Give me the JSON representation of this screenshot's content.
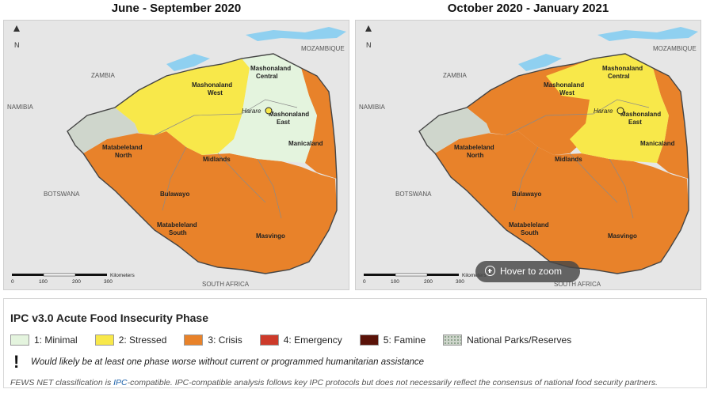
{
  "maps": [
    {
      "title": "June - September 2020",
      "labels": {
        "zambia": "ZAMBIA",
        "mozambique": "MOZAMBIQUE",
        "namibia": "NAMIBIA",
        "botswana": "BOTSWANA",
        "south_africa": "SOUTH AFRICA",
        "mashonaland_central_1": "Mashonaland",
        "mashonaland_central_2": "Central",
        "mashonaland_west_1": "Mashonaland",
        "mashonaland_west_2": "West",
        "mashonaland_east_1": "Mashonaland",
        "mashonaland_east_2": "East",
        "harare": "Harare",
        "matabeleland_north_1": "Matabeleland",
        "matabeleland_north_2": "North",
        "midlands": "Midlands",
        "manicaland": "Manicaland",
        "bulawayo": "Bulawayo",
        "matabeleland_south_1": "Matabeleland",
        "matabeleland_south_2": "South",
        "masvingo": "Masvingo"
      },
      "scale": {
        "ticks": [
          "0",
          "100",
          "200",
          "300"
        ],
        "unit": "Kilometers"
      },
      "north_label": "N",
      "fills": {
        "north": "#f8e84a",
        "northeast": "#e4f4de",
        "west": "#cfd6cc",
        "south": "#e8822a"
      }
    },
    {
      "title": "October 2020 - January 2021",
      "labels": {
        "zambia": "ZAMBIA",
        "mozambique": "MOZAMBIQUE",
        "namibia": "NAMIBIA",
        "botswana": "BOTSWANA",
        "south_africa": "SOUTH AFRICA",
        "mashonaland_central_1": "Mashonaland",
        "mashonaland_central_2": "Central",
        "mashonaland_west_1": "Mashonaland",
        "mashonaland_west_2": "West",
        "mashonaland_east_1": "Mashonaland",
        "mashonaland_east_2": "East",
        "harare": "Harare",
        "matabeleland_north_1": "Matabeleland",
        "matabeleland_north_2": "North",
        "midlands": "Midlands",
        "manicaland": "Manicaland",
        "bulawayo": "Bulawayo",
        "matabeleland_south_1": "Matabeleland",
        "matabeleland_south_2": "South",
        "masvingo": "Masvingo"
      },
      "scale": {
        "ticks": [
          "0",
          "100",
          "200",
          "300"
        ],
        "unit": "Kilometers"
      },
      "north_label": "N",
      "fills": {
        "north": "#e8822a",
        "northeast": "#f8e84a",
        "west": "#cfd6cc",
        "south": "#e8822a"
      }
    }
  ],
  "hover_zoom": {
    "label": "Hover to zoom",
    "icon": "zoom-in-icon"
  },
  "legend": {
    "title": "IPC v3.0 Acute Food Insecurity Phase",
    "items": [
      {
        "label": "1: Minimal",
        "color": "#e4f4de"
      },
      {
        "label": "2: Stressed",
        "color": "#f8e84a"
      },
      {
        "label": "3: Crisis",
        "color": "#e8822a"
      },
      {
        "label": "4: Emergency",
        "color": "#cd3a2a"
      },
      {
        "label": "5: Famine",
        "color": "#5a1208"
      },
      {
        "label": "National Parks/Reserves",
        "color": "#cfd6cc"
      }
    ],
    "note_symbol": "!",
    "note": "Would likely be at least one phase worse without current or programmed humanitarian assistance"
  },
  "footer": {
    "before": "FEWS NET classification is ",
    "link": "IPC",
    "after": "-compatible. IPC-compatible analysis follows key IPC protocols but does not necessarily reflect the consensus of national food security partners."
  },
  "colors": {
    "water": "#8fd0f0",
    "border": "#444444",
    "district_line": "#8a8a8a",
    "background": "#e6e6e6"
  }
}
